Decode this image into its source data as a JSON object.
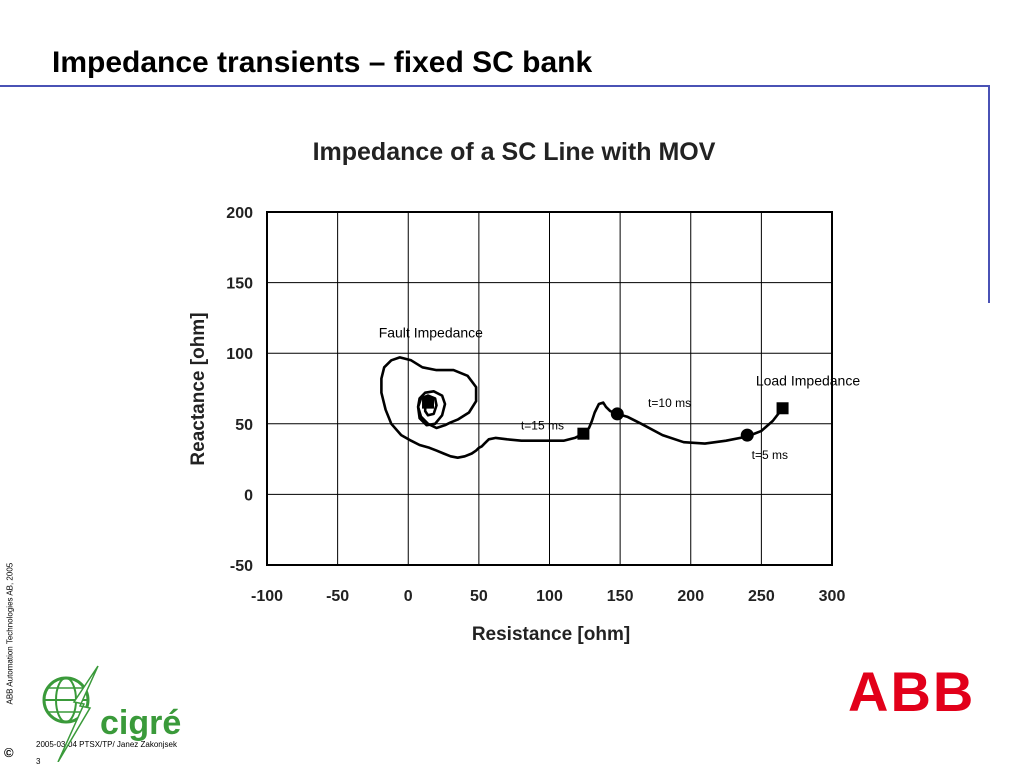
{
  "slide": {
    "title": "Impedance transients – fixed SC bank",
    "copyright_symbol": "©",
    "vertical_credit": "ABB Automation Technologies AB, 2005",
    "footer_text": "2005-03-04  PTSX/TP/ Janez Zakonjsek",
    "page_number": "3",
    "logo_left_text": "cigré",
    "logo_right_text": "ABB",
    "accent_color": "#4a52b5",
    "cigre_color": "#3a9a3a",
    "abb_color": "#e2001a"
  },
  "chart_data": {
    "type": "line",
    "title": "Impedance of a SC Line with MOV",
    "xlabel": "Resistance [ohm]",
    "ylabel": "Reactance [ohm]",
    "xlim": [
      -100,
      300
    ],
    "ylim": [
      -50,
      200
    ],
    "x_ticks": [
      "-100",
      "-50",
      "0",
      "50",
      "100",
      "150",
      "200",
      "250",
      "300"
    ],
    "y_ticks": [
      "200",
      "150",
      "100",
      "50",
      "0",
      "-50"
    ],
    "grid": true,
    "series": [
      {
        "x": [
          265,
          258,
          250,
          240,
          225,
          210,
          195,
          180,
          165,
          155,
          148,
          143,
          140,
          138,
          135,
          132,
          130,
          128,
          124,
          118,
          110,
          100,
          90,
          80,
          70,
          62,
          57,
          54,
          52,
          50,
          48,
          45,
          40,
          35,
          30,
          25,
          20,
          15,
          8,
          2,
          -5,
          -12,
          -16,
          -19,
          -19,
          -17,
          -12,
          -6,
          2,
          10,
          20,
          32,
          42,
          48,
          48,
          43,
          35,
          30,
          28,
          26,
          20,
          14,
          9,
          7,
          8,
          12,
          18,
          24,
          26,
          24,
          19,
          13,
          8,
          7,
          9,
          14,
          19,
          20,
          18,
          14,
          12,
          12,
          14
        ],
        "y": [
          61,
          52,
          45,
          41,
          38,
          36,
          37,
          42,
          50,
          55,
          57,
          59,
          62,
          65,
          64,
          58,
          52,
          47,
          43,
          40,
          38,
          38,
          38,
          38,
          39,
          40,
          39,
          36,
          34,
          33,
          31,
          29,
          27,
          26,
          27,
          29,
          31,
          33,
          35,
          38,
          42,
          50,
          60,
          72,
          82,
          90,
          95,
          97,
          95,
          90,
          88,
          88,
          84,
          76,
          66,
          58,
          53,
          51,
          50,
          49,
          47,
          50,
          55,
          62,
          68,
          72,
          73,
          70,
          64,
          56,
          50,
          49,
          54,
          62,
          68,
          70,
          68,
          63,
          57,
          56,
          59,
          64,
          66
        ]
      }
    ],
    "markers": [
      {
        "shape": "square",
        "x": 265,
        "y": 61
      },
      {
        "shape": "circle",
        "x": 240,
        "y": 42
      },
      {
        "shape": "circle",
        "x": 148,
        "y": 57
      },
      {
        "shape": "square",
        "x": 124,
        "y": 43
      },
      {
        "shape": "square",
        "x": 14,
        "y": 65
      }
    ],
    "annotations": [
      {
        "text": "Fault Impedance",
        "x": 16,
        "y": 111
      },
      {
        "text": "Load Impedance",
        "x": 283,
        "y": 77
      },
      {
        "text": "t=10 ms",
        "x": 185,
        "y": 62
      },
      {
        "text": "t=15 ms",
        "x": 95,
        "y": 46
      },
      {
        "text": "t=5 ms",
        "x": 256,
        "y": 25
      }
    ]
  }
}
